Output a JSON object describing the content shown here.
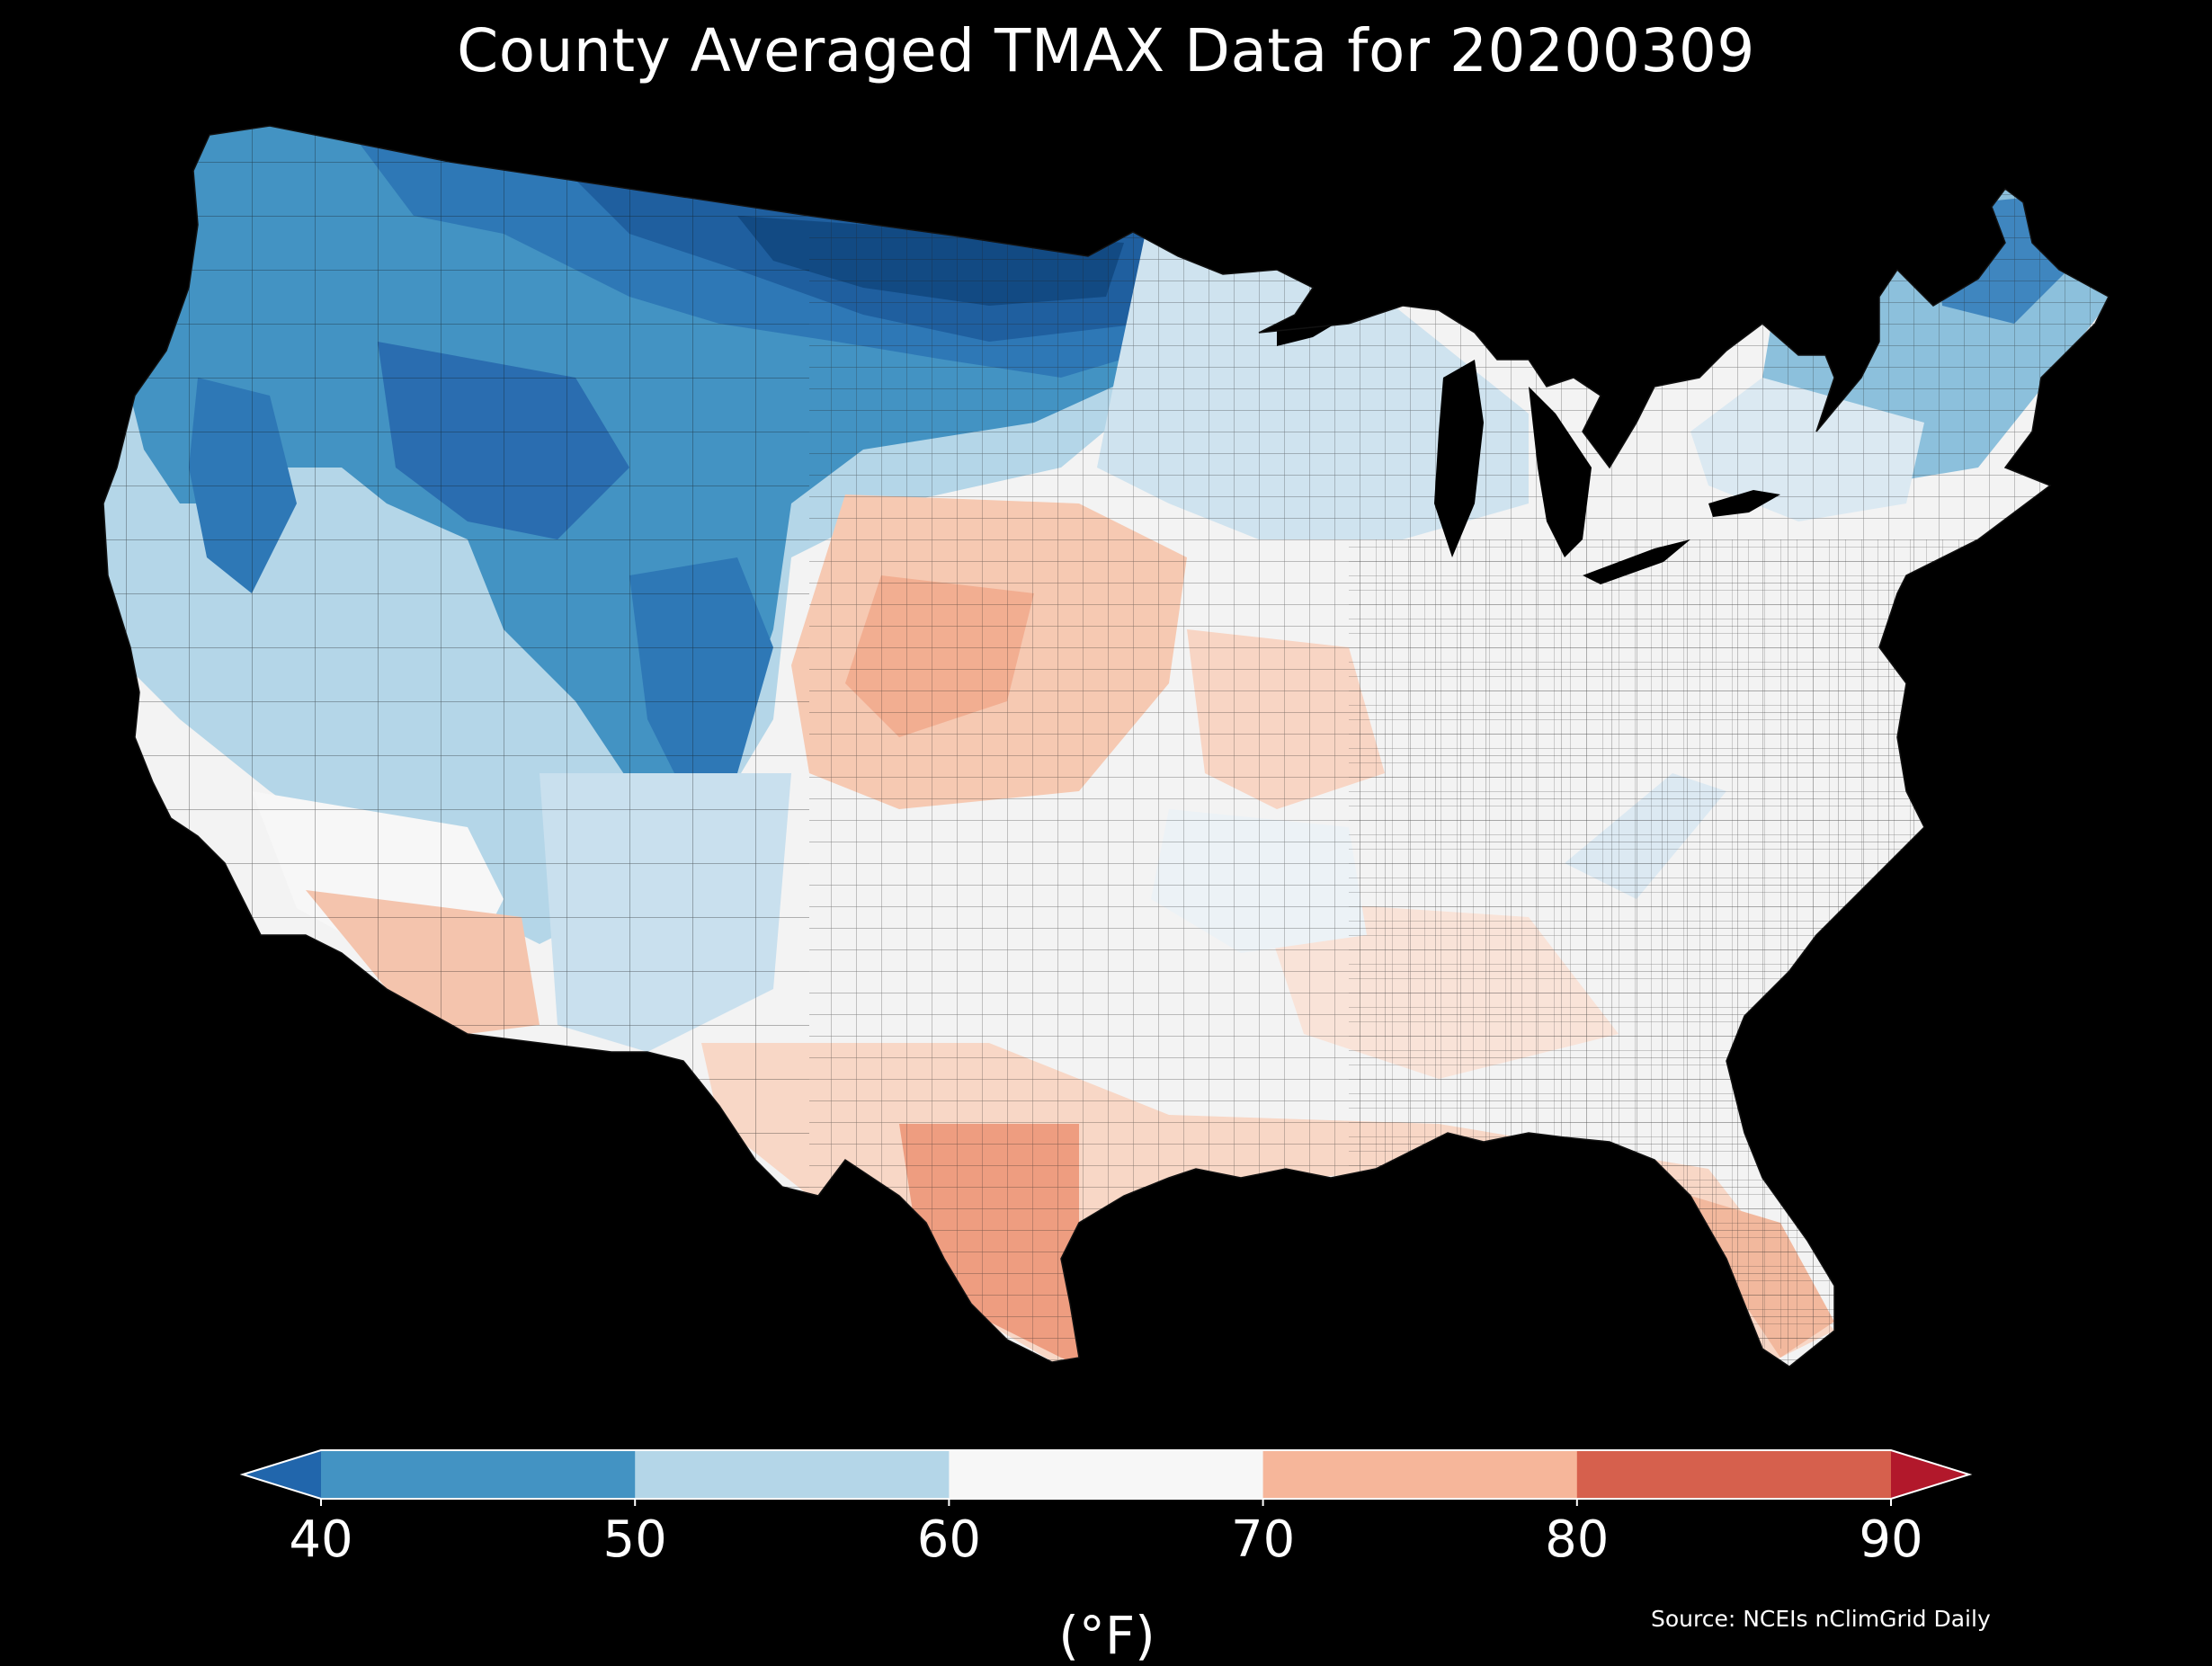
{
  "title": "County Averaged TMAX Data for 20200309",
  "colorbar": {
    "units": "(°F)",
    "ticks": [
      "40",
      "50",
      "60",
      "70",
      "80",
      "90"
    ],
    "tick_values": [
      40,
      50,
      60,
      70,
      80,
      90
    ],
    "extend": "both",
    "bins": [
      {
        "range": "<40",
        "color": "#2166ac"
      },
      {
        "range": "40-50",
        "color": "#4393c3"
      },
      {
        "range": "50-60",
        "color": "#b4d6e8"
      },
      {
        "range": "60-70",
        "color": "#f7f7f7"
      },
      {
        "range": "70-80",
        "color": "#f6b69a"
      },
      {
        "range": "80-90",
        "color": "#d6604d"
      },
      {
        "range": ">90",
        "color": "#b2182b"
      }
    ]
  },
  "source": "Source: NCEIs nClimGrid Daily",
  "map": {
    "region": "Contiguous United States",
    "background": "#000000",
    "border_color": "#000000"
  }
}
